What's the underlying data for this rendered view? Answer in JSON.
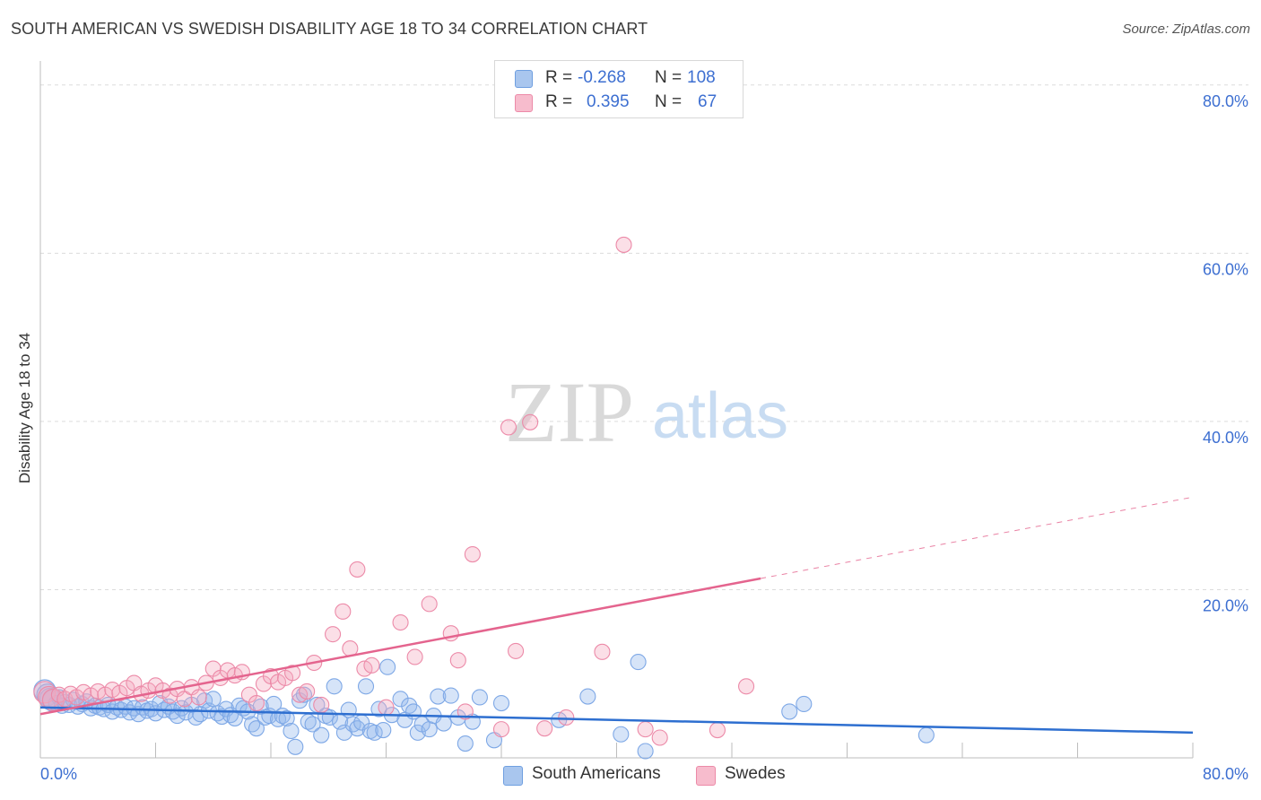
{
  "title": "SOUTH AMERICAN VS SWEDISH DISABILITY AGE 18 TO 34 CORRELATION CHART",
  "source": "Source: ZipAtlas.com",
  "watermark": {
    "zip": "ZIP",
    "atlas": "atlas"
  },
  "legend_top": [
    {
      "r_label": "R =",
      "r_value": "-0.268",
      "n_label": "N =",
      "n_value": "108",
      "color": "#a9c6ee",
      "border": "#6f9fe0"
    },
    {
      "r_label": "R =",
      "r_value": "0.395",
      "n_label": "N =",
      "n_value": "67",
      "color": "#f7bccd",
      "border": "#ec8aa8"
    }
  ],
  "legend_bottom": [
    {
      "label": "South Americans",
      "color": "#a9c6ee",
      "border": "#6f9fe0"
    },
    {
      "label": "Swedes",
      "color": "#f7bccd",
      "border": "#ec8aa8"
    }
  ],
  "chart_data": {
    "type": "scatter",
    "title": "SOUTH AMERICAN VS SWEDISH DISABILITY AGE 18 TO 34 CORRELATION CHART",
    "xlabel": "",
    "ylabel": "Disability Age 18 to 34",
    "xlim": [
      0,
      80
    ],
    "ylim": [
      0,
      82
    ],
    "x_tick_labels": [
      "0.0%",
      "80.0%"
    ],
    "y_ticks": [
      20,
      40,
      60,
      80
    ],
    "y_tick_labels": [
      "20.0%",
      "40.0%",
      "60.0%",
      "80.0%"
    ],
    "grid": true,
    "series": [
      {
        "name": "South Americans",
        "color": "#7ea8e6",
        "fill": "rgba(146,183,236,0.38)",
        "trend": {
          "x": [
            0,
            80
          ],
          "y": [
            6.0,
            3.0
          ],
          "color": "#2e6fd0",
          "dashed_from": null
        },
        "points": [
          [
            0.3,
            8.0
          ],
          [
            0.5,
            7.5
          ],
          [
            0.7,
            7.0
          ],
          [
            0.9,
            6.8
          ],
          [
            1.1,
            6.5
          ],
          [
            1.3,
            7.2
          ],
          [
            1.5,
            6.2
          ],
          [
            1.7,
            6.6
          ],
          [
            2.0,
            6.3
          ],
          [
            2.3,
            6.9
          ],
          [
            2.6,
            6.1
          ],
          [
            2.9,
            6.4
          ],
          [
            3.2,
            6.7
          ],
          [
            3.5,
            5.9
          ],
          [
            3.8,
            6.2
          ],
          [
            4.1,
            6.0
          ],
          [
            4.4,
            5.8
          ],
          [
            4.7,
            6.3
          ],
          [
            5.0,
            5.5
          ],
          [
            5.3,
            6.0
          ],
          [
            5.6,
            5.7
          ],
          [
            5.9,
            6.1
          ],
          [
            6.2,
            5.4
          ],
          [
            6.5,
            5.9
          ],
          [
            6.8,
            5.2
          ],
          [
            7.1,
            6.0
          ],
          [
            7.4,
            5.6
          ],
          [
            7.7,
            5.8
          ],
          [
            8.0,
            5.3
          ],
          [
            8.3,
            6.5
          ],
          [
            8.6,
            5.7
          ],
          [
            8.9,
            6.1
          ],
          [
            9.2,
            5.5
          ],
          [
            9.5,
            5.0
          ],
          [
            9.8,
            5.9
          ],
          [
            10.1,
            5.4
          ],
          [
            10.5,
            6.3
          ],
          [
            10.8,
            4.8
          ],
          [
            11.1,
            5.2
          ],
          [
            11.4,
            6.8
          ],
          [
            11.7,
            5.6
          ],
          [
            12.0,
            7.0
          ],
          [
            12.3,
            5.3
          ],
          [
            12.6,
            4.9
          ],
          [
            12.9,
            5.8
          ],
          [
            13.2,
            5.1
          ],
          [
            13.5,
            4.7
          ],
          [
            13.8,
            6.2
          ],
          [
            14.1,
            5.9
          ],
          [
            14.4,
            5.5
          ],
          [
            14.7,
            4.0
          ],
          [
            15.0,
            3.5
          ],
          [
            15.3,
            6.1
          ],
          [
            15.6,
            4.8
          ],
          [
            15.9,
            5.0
          ],
          [
            16.2,
            6.4
          ],
          [
            16.5,
            4.6
          ],
          [
            16.8,
            5.0
          ],
          [
            17.1,
            4.7
          ],
          [
            17.4,
            3.2
          ],
          [
            17.7,
            1.3
          ],
          [
            18.0,
            6.8
          ],
          [
            18.3,
            7.5
          ],
          [
            18.6,
            4.3
          ],
          [
            18.9,
            4.0
          ],
          [
            19.2,
            6.3
          ],
          [
            19.5,
            2.7
          ],
          [
            19.8,
            5.0
          ],
          [
            20.1,
            4.8
          ],
          [
            20.4,
            8.5
          ],
          [
            20.8,
            4.3
          ],
          [
            21.1,
            3.0
          ],
          [
            21.4,
            5.7
          ],
          [
            21.7,
            4.0
          ],
          [
            22.0,
            3.5
          ],
          [
            22.3,
            4.2
          ],
          [
            22.6,
            8.5
          ],
          [
            22.9,
            3.2
          ],
          [
            23.2,
            3.0
          ],
          [
            23.5,
            5.8
          ],
          [
            23.8,
            3.3
          ],
          [
            24.1,
            10.8
          ],
          [
            24.4,
            5.1
          ],
          [
            25.0,
            7.0
          ],
          [
            25.3,
            4.5
          ],
          [
            25.6,
            6.2
          ],
          [
            25.9,
            5.5
          ],
          [
            26.2,
            3.0
          ],
          [
            26.5,
            4.0
          ],
          [
            27.0,
            3.4
          ],
          [
            27.3,
            5.0
          ],
          [
            27.6,
            7.3
          ],
          [
            28.0,
            4.1
          ],
          [
            28.5,
            7.4
          ],
          [
            29.0,
            4.8
          ],
          [
            29.5,
            1.7
          ],
          [
            30.0,
            4.3
          ],
          [
            30.5,
            7.2
          ],
          [
            31.5,
            2.1
          ],
          [
            32.0,
            6.5
          ],
          [
            36.0,
            4.5
          ],
          [
            38.0,
            7.3
          ],
          [
            40.3,
            2.8
          ],
          [
            41.5,
            11.4
          ],
          [
            52.0,
            5.5
          ],
          [
            53.0,
            6.4
          ],
          [
            42.0,
            0.8
          ],
          [
            61.5,
            2.7
          ]
        ]
      },
      {
        "name": "Swedes",
        "color": "#ec8aa8",
        "fill": "rgba(244,170,192,0.38)",
        "trend": {
          "x": [
            0,
            80
          ],
          "y": [
            5.2,
            31.0
          ],
          "color": "#e4648e",
          "dashed_from": 50
        },
        "points": [
          [
            0.3,
            7.8
          ],
          [
            0.6,
            7.2
          ],
          [
            0.9,
            6.9
          ],
          [
            1.3,
            7.5
          ],
          [
            1.7,
            7.0
          ],
          [
            2.1,
            7.6
          ],
          [
            2.5,
            7.2
          ],
          [
            3.0,
            7.8
          ],
          [
            3.5,
            7.4
          ],
          [
            4.0,
            7.9
          ],
          [
            4.5,
            7.5
          ],
          [
            5.0,
            8.1
          ],
          [
            5.5,
            7.7
          ],
          [
            6.0,
            8.3
          ],
          [
            6.5,
            8.9
          ],
          [
            7.0,
            7.6
          ],
          [
            7.5,
            8.0
          ],
          [
            8.0,
            8.6
          ],
          [
            8.5,
            8.0
          ],
          [
            9.0,
            7.4
          ],
          [
            9.5,
            8.2
          ],
          [
            10.0,
            7.0
          ],
          [
            10.5,
            8.4
          ],
          [
            11.0,
            7.2
          ],
          [
            11.5,
            8.9
          ],
          [
            12.0,
            10.6
          ],
          [
            12.5,
            9.5
          ],
          [
            13.0,
            10.4
          ],
          [
            13.5,
            9.8
          ],
          [
            14.0,
            10.2
          ],
          [
            14.5,
            7.5
          ],
          [
            15.0,
            6.5
          ],
          [
            15.5,
            8.8
          ],
          [
            16.0,
            9.7
          ],
          [
            16.5,
            9.0
          ],
          [
            17.0,
            9.5
          ],
          [
            17.5,
            10.1
          ],
          [
            18.0,
            7.5
          ],
          [
            18.5,
            7.9
          ],
          [
            19.0,
            11.3
          ],
          [
            19.5,
            6.3
          ],
          [
            20.3,
            14.7
          ],
          [
            21.0,
            17.4
          ],
          [
            21.5,
            13.0
          ],
          [
            22.0,
            22.4
          ],
          [
            22.5,
            10.6
          ],
          [
            23.0,
            11.0
          ],
          [
            24.0,
            6.0
          ],
          [
            25.0,
            16.1
          ],
          [
            26.0,
            12.0
          ],
          [
            27.0,
            18.3
          ],
          [
            28.5,
            14.8
          ],
          [
            29.0,
            11.6
          ],
          [
            29.5,
            5.5
          ],
          [
            30.0,
            24.2
          ],
          [
            32.0,
            3.4
          ],
          [
            32.5,
            39.3
          ],
          [
            33.0,
            12.7
          ],
          [
            34.0,
            39.9
          ],
          [
            35.0,
            3.5
          ],
          [
            36.5,
            4.8
          ],
          [
            39.0,
            12.6
          ],
          [
            40.5,
            61.0
          ],
          [
            42.0,
            3.4
          ],
          [
            43.0,
            2.4
          ],
          [
            49.0,
            8.5
          ],
          [
            47.0,
            3.3
          ]
        ]
      }
    ]
  }
}
